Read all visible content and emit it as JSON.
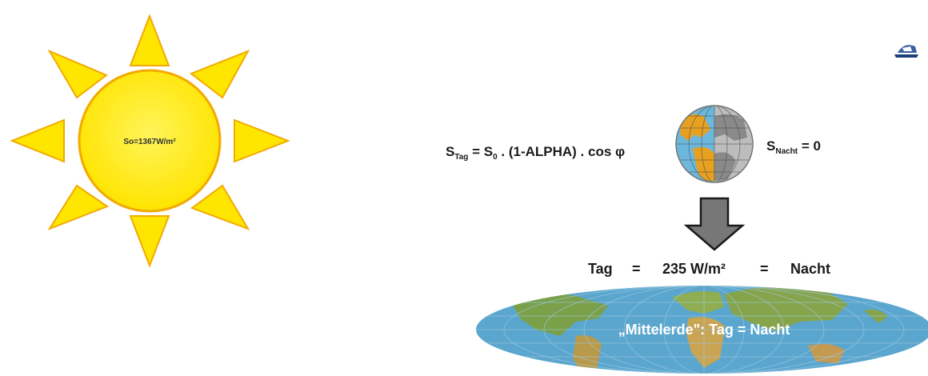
{
  "sun": {
    "label": "So=1367W/m²",
    "color_fill": "#ffee00",
    "color_stroke": "#f2a900"
  },
  "formula_day": {
    "s": "S",
    "sub": "Tag",
    "eq": " = S",
    "sub0": "0",
    "rest": " . (1-ALPHA) . cos φ"
  },
  "formula_night": {
    "s": "S",
    "sub": "Nacht",
    "rest": " = 0"
  },
  "balance": {
    "left": "Tag",
    "eq1": "=",
    "value": "235 W/m²",
    "eq2": "=",
    "right": "Nacht"
  },
  "map": {
    "caption": "„Mittelerde\": Tag = Nacht"
  },
  "icons": [
    "sun-icon",
    "globe-icon",
    "down-arrow-icon",
    "world-map-icon",
    "logo-icon"
  ],
  "colors": {
    "arrow": "#777777",
    "ocean": "#5aa6cf",
    "land_day": "#e8a020",
    "land_night": "#8a8a8a",
    "globe_night": "#bdbdbd"
  }
}
